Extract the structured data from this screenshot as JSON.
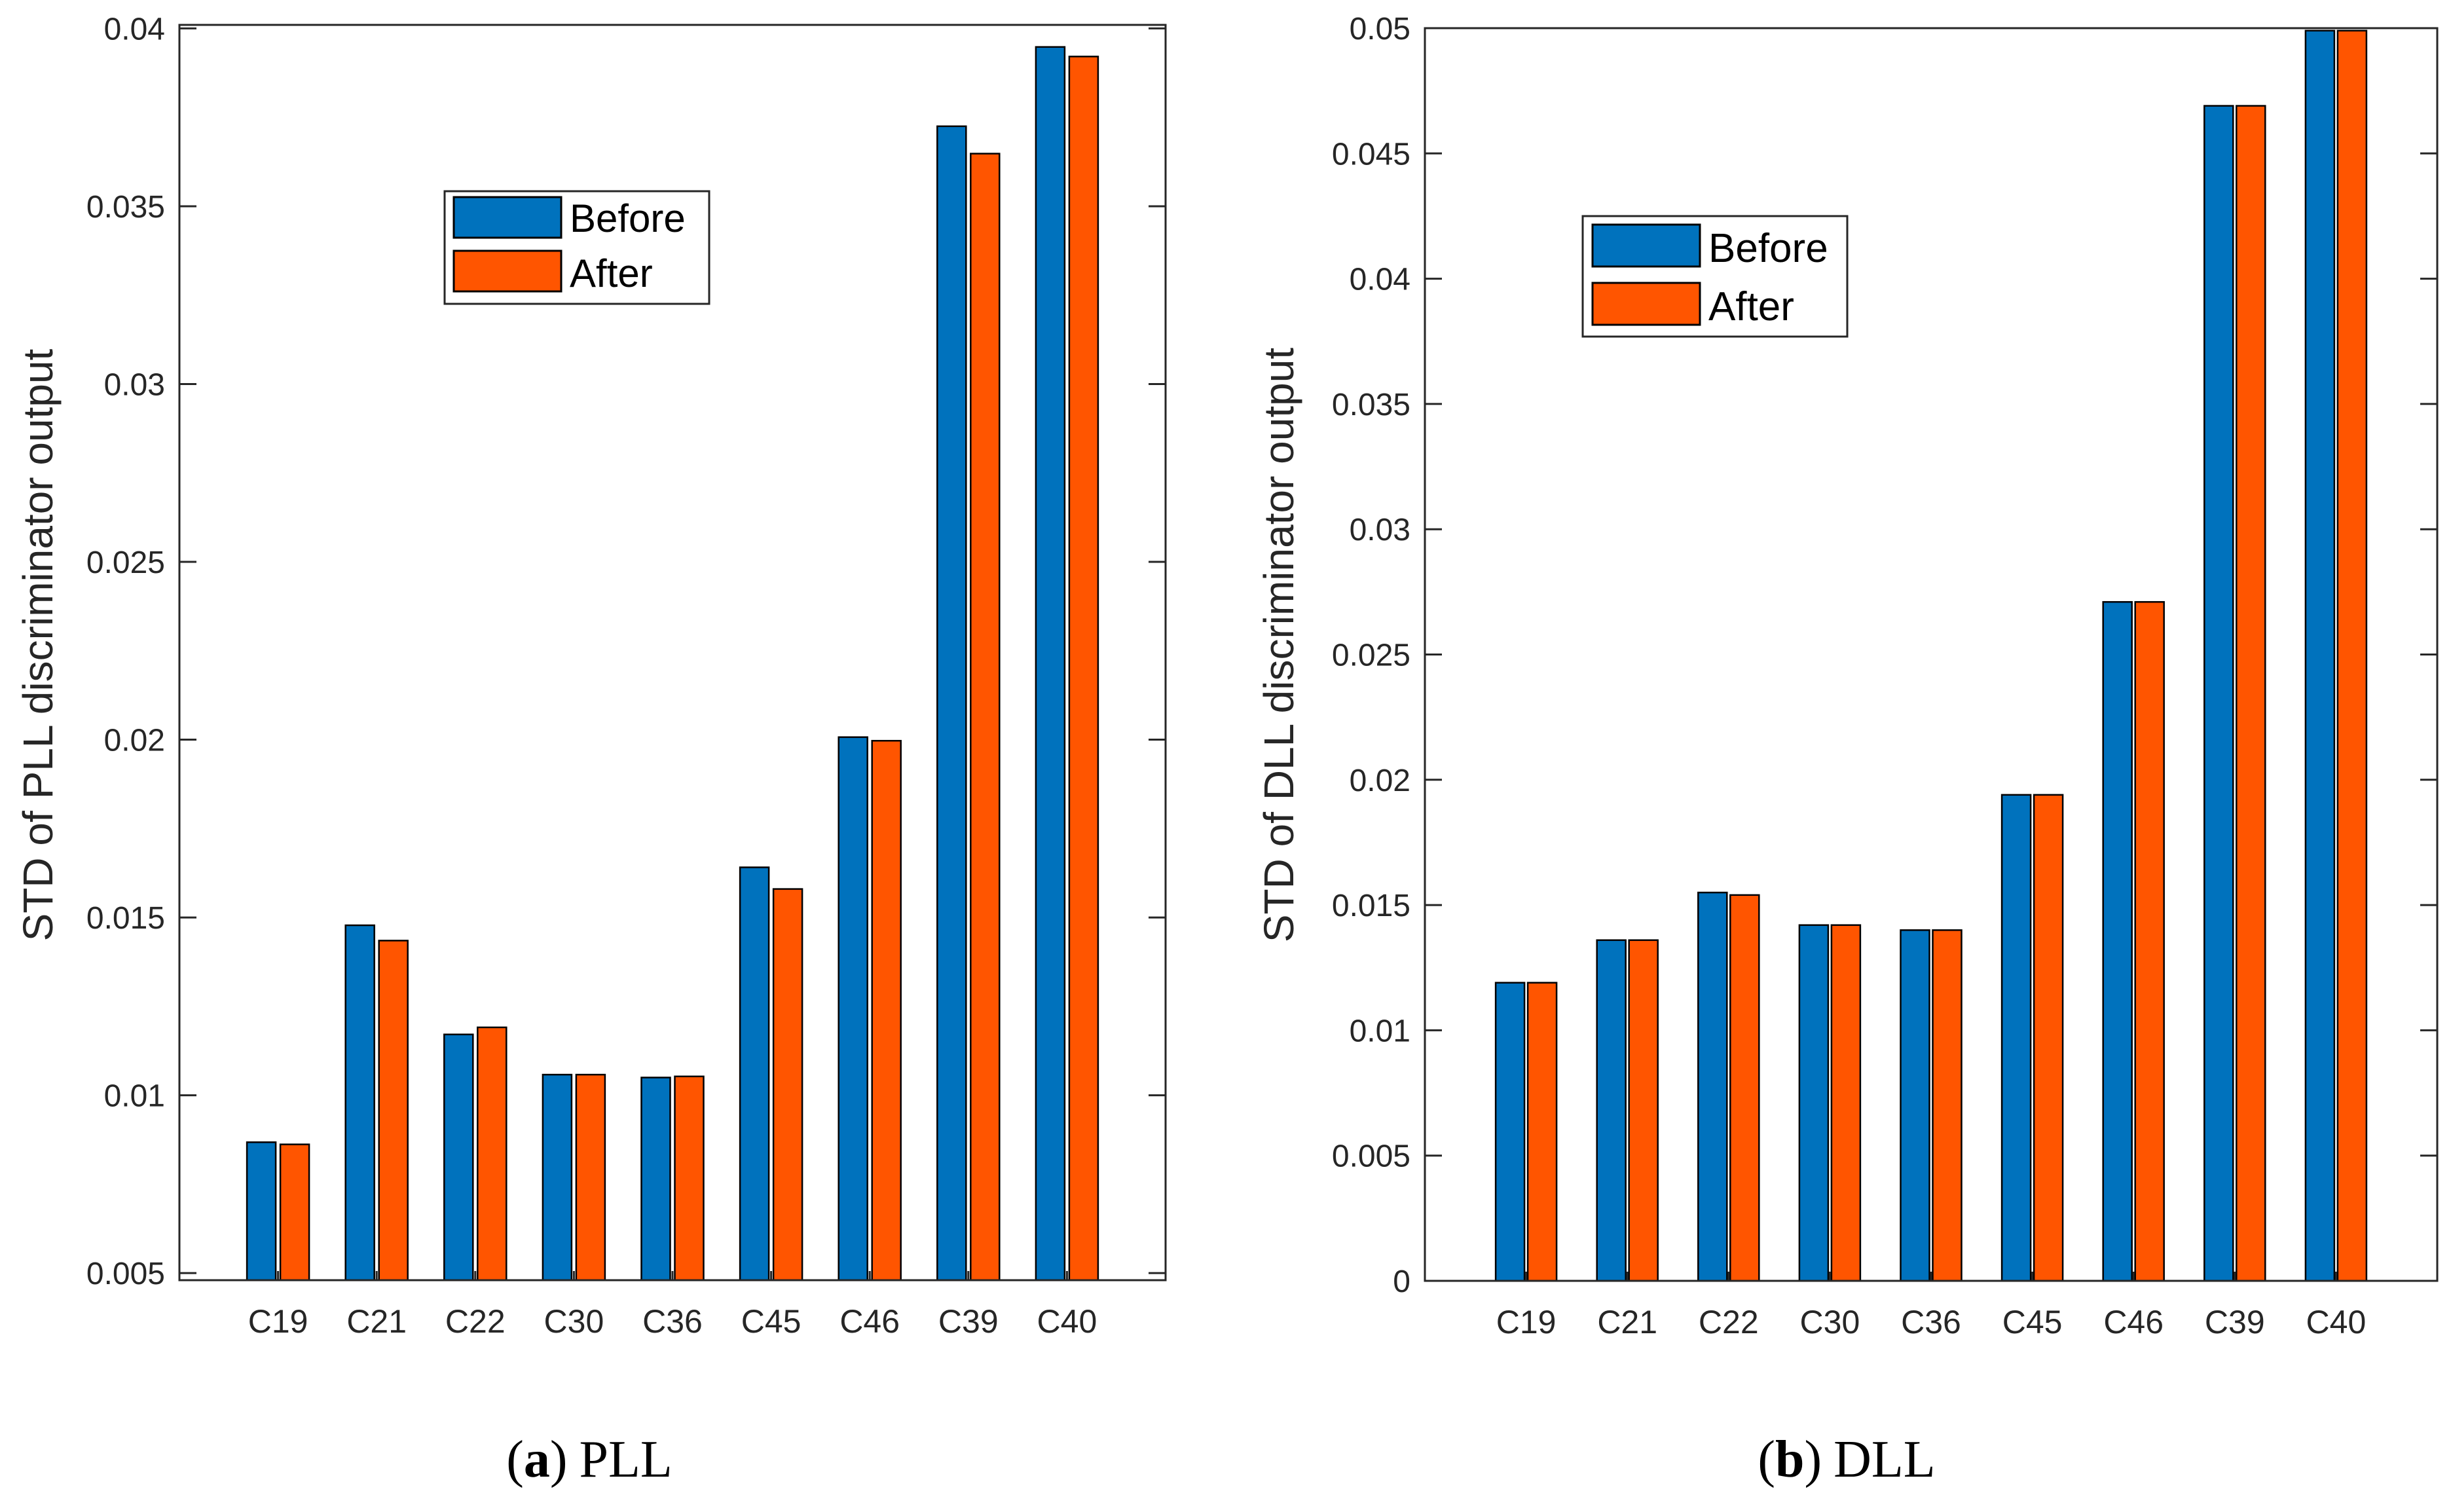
{
  "chart_data": [
    {
      "type": "bar",
      "panel_letter": "a",
      "panel_caption": "PLL",
      "title": "",
      "xlabel": "",
      "ylabel": "STD of PLL discriminator output",
      "categories": [
        "C19",
        "C21",
        "C22",
        "C30",
        "C36",
        "C45",
        "C46",
        "C39",
        "C40"
      ],
      "series": [
        {
          "name": "Before",
          "color": "#0072BD",
          "values": [
            0.00868,
            0.01478,
            0.01171,
            0.01058,
            0.0105,
            0.01641,
            0.02007,
            0.03725,
            0.03948
          ]
        },
        {
          "name": "After",
          "color": "#FF5500",
          "values": [
            0.00862,
            0.01435,
            0.01191,
            0.01058,
            0.01053,
            0.0158,
            0.01997,
            0.03648,
            0.03921
          ]
        }
      ],
      "ylim": [
        0.0048,
        0.0401
      ],
      "yticks": [
        0.005,
        0.01,
        0.015,
        0.02,
        0.025,
        0.03,
        0.035,
        0.04
      ],
      "ytick_labels": [
        "0.005",
        "0.01",
        "0.015",
        "0.02",
        "0.025",
        "0.03",
        "0.035",
        "0.04"
      ],
      "legend_position": "upper-center",
      "grid": false
    },
    {
      "type": "bar",
      "panel_letter": "b",
      "panel_caption": "DLL",
      "title": "",
      "xlabel": "",
      "ylabel": "STD of DLL discriminator output",
      "categories": [
        "C19",
        "C21",
        "C22",
        "C30",
        "C36",
        "C45",
        "C46",
        "C39",
        "C40"
      ],
      "series": [
        {
          "name": "Before",
          "color": "#0072BD",
          "values": [
            0.0119,
            0.0136,
            0.0155,
            0.0142,
            0.014,
            0.0194,
            0.0271,
            0.0469,
            0.0499
          ]
        },
        {
          "name": "After",
          "color": "#FF5500",
          "values": [
            0.0119,
            0.0136,
            0.0154,
            0.0142,
            0.014,
            0.0194,
            0.0271,
            0.0469,
            0.0499
          ]
        }
      ],
      "ylim": [
        0,
        0.05
      ],
      "yticks": [
        0,
        0.005,
        0.01,
        0.015,
        0.02,
        0.025,
        0.03,
        0.035,
        0.04,
        0.045,
        0.05
      ],
      "ytick_labels": [
        "0",
        "0.005",
        "0.01",
        "0.015",
        "0.02",
        "0.025",
        "0.03",
        "0.035",
        "0.04",
        "0.045",
        "0.05"
      ],
      "legend_position": "upper-left",
      "grid": false
    }
  ]
}
